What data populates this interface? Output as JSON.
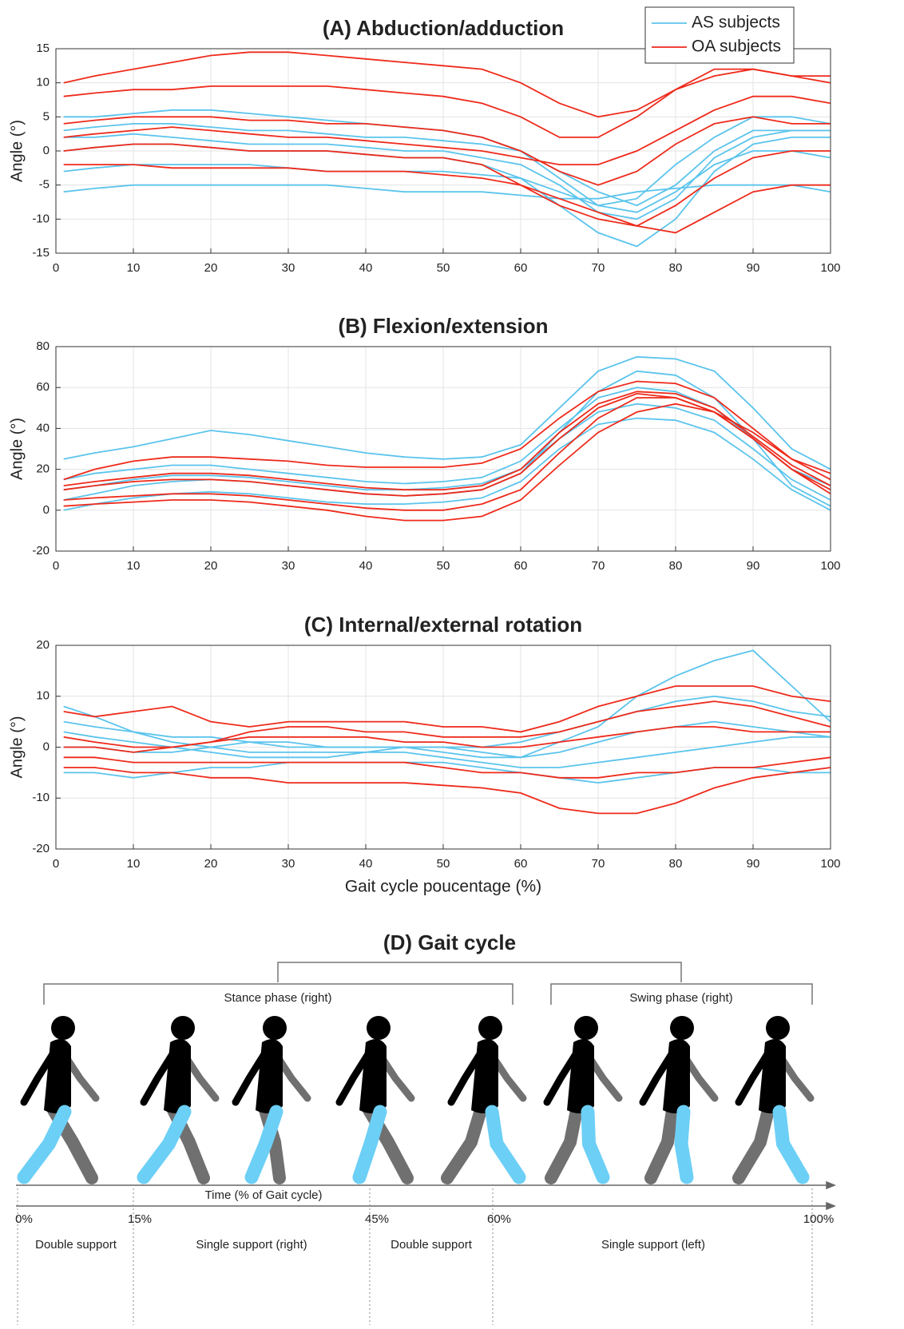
{
  "chart_data": [
    {
      "type": "line",
      "title": "(A) Abduction/adduction",
      "ylabel": "Angle (°)",
      "legend": "upper right",
      "grid": true,
      "x": [
        1,
        5,
        10,
        15,
        20,
        25,
        30,
        35,
        40,
        45,
        50,
        55,
        60,
        65,
        70,
        75,
        80,
        85,
        90,
        95,
        100
      ],
      "xlim": [
        0,
        100
      ],
      "xticks": [
        0,
        10,
        20,
        30,
        40,
        50,
        60,
        70,
        80,
        90,
        100
      ],
      "ylim": [
        -15,
        15
      ],
      "yticks": [
        -15,
        -10,
        -5,
        0,
        5,
        10,
        15
      ],
      "series": [
        {
          "name": "AS subjects",
          "color": "#5bc4ec",
          "values": [
            [
              3,
              3.5,
              4,
              4,
              3.5,
              3,
              3,
              2.5,
              2,
              2,
              1.5,
              1,
              0,
              -3,
              -6,
              -8,
              -5,
              0,
              3,
              3,
              3
            ],
            [
              0,
              0.5,
              1,
              1,
              0.5,
              0,
              0,
              0,
              -0.5,
              -1,
              -1,
              -2,
              -4,
              -8,
              -12,
              -14,
              -10,
              -3,
              1,
              2,
              2
            ],
            [
              -6,
              -5.5,
              -5,
              -5,
              -5,
              -5,
              -5,
              -5,
              -5.5,
              -6,
              -6,
              -6,
              -6.5,
              -7,
              -7,
              -6,
              -5.5,
              -5,
              -5,
              -5,
              -6
            ],
            [
              5,
              5,
              5.5,
              6,
              6,
              5.5,
              5,
              4.5,
              4,
              3.5,
              3,
              2,
              0,
              -4,
              -8,
              -7,
              -2,
              2,
              5,
              5,
              4
            ],
            [
              -3,
              -2.5,
              -2,
              -2,
              -2,
              -2,
              -2.5,
              -3,
              -3,
              -3,
              -3,
              -3.5,
              -4,
              -6,
              -8,
              -9,
              -6,
              -2,
              0,
              0,
              -1
            ],
            [
              2,
              2,
              2.5,
              2,
              1.5,
              1,
              1,
              1,
              0.5,
              0,
              0,
              -1,
              -2,
              -5,
              -9,
              -10,
              -7,
              -1,
              2,
              3,
              3
            ]
          ]
        },
        {
          "name": "OA subjects",
          "color": "#ee2a1b",
          "values": [
            [
              10,
              11,
              12,
              13,
              14,
              14.5,
              14.5,
              14,
              13.5,
              13,
              12.5,
              12,
              10,
              7,
              5,
              6,
              9,
              11,
              12,
              11,
              11
            ],
            [
              8,
              8.5,
              9,
              9,
              9.5,
              9.5,
              9.5,
              9.5,
              9,
              8.5,
              8,
              7,
              5,
              2,
              2,
              5,
              9,
              12,
              12,
              11,
              10
            ],
            [
              4,
              4.5,
              5,
              5,
              5,
              4.5,
              4.5,
              4,
              4,
              3.5,
              3,
              2,
              0,
              -3,
              -5,
              -3,
              1,
              4,
              5,
              4,
              4
            ],
            [
              0,
              0.5,
              1,
              1,
              0.5,
              0,
              0,
              0,
              -0.5,
              -1,
              -1,
              -2,
              -5,
              -8,
              -10,
              -11,
              -8,
              -4,
              -1,
              0,
              0
            ],
            [
              -2,
              -2,
              -2,
              -2.5,
              -2.5,
              -2.5,
              -2.5,
              -3,
              -3,
              -3,
              -3.5,
              -4,
              -5,
              -7,
              -9,
              -11,
              -12,
              -9,
              -6,
              -5,
              -5
            ],
            [
              2,
              2.5,
              3,
              3.5,
              3,
              2.5,
              2,
              2,
              1.5,
              1,
              0.5,
              0,
              -1,
              -2,
              -2,
              0,
              3,
              6,
              8,
              8,
              7
            ]
          ]
        }
      ]
    },
    {
      "type": "line",
      "title": "(B) Flexion/extension",
      "ylabel": "Angle (°)",
      "grid": true,
      "x": [
        1,
        5,
        10,
        15,
        20,
        25,
        30,
        35,
        40,
        45,
        50,
        55,
        60,
        65,
        70,
        75,
        80,
        85,
        90,
        95,
        100
      ],
      "xlim": [
        0,
        100
      ],
      "xticks": [
        0,
        10,
        20,
        30,
        40,
        50,
        60,
        70,
        80,
        90,
        100
      ],
      "ylim": [
        -20,
        80
      ],
      "yticks": [
        -20,
        0,
        20,
        40,
        60,
        80
      ],
      "series": [
        {
          "color": "#5bc4ec",
          "values": [
            [
              25,
              28,
              31,
              35,
              39,
              37,
              34,
              31,
              28,
              26,
              25,
              26,
              32,
              50,
              68,
              75,
              74,
              68,
              50,
              30,
              20
            ],
            [
              5,
              8,
              12,
              14,
              15,
              14,
              12,
              10,
              8,
              7,
              8,
              10,
              18,
              38,
              58,
              68,
              66,
              55,
              35,
              12,
              2
            ],
            [
              0,
              3,
              6,
              8,
              9,
              8,
              6,
              4,
              3,
              3,
              4,
              6,
              14,
              30,
              42,
              45,
              44,
              38,
              25,
              10,
              0
            ],
            [
              10,
              12,
              15,
              17,
              17,
              16,
              14,
              12,
              10,
              10,
              11,
              13,
              20,
              35,
              48,
              52,
              50,
              44,
              30,
              15,
              5
            ],
            [
              15,
              18,
              20,
              22,
              22,
              20,
              18,
              16,
              14,
              13,
              14,
              16,
              24,
              40,
              55,
              60,
              58,
              50,
              35,
              20,
              12
            ]
          ]
        },
        {
          "color": "#ee2a1b",
          "values": [
            [
              15,
              20,
              24,
              26,
              26,
              25,
              24,
              22,
              21,
              21,
              21,
              23,
              30,
              45,
              58,
              63,
              62,
              55,
              40,
              25,
              18
            ],
            [
              10,
              12,
              14,
              15,
              15,
              14,
              12,
              10,
              8,
              7,
              8,
              10,
              18,
              35,
              50,
              57,
              55,
              48,
              35,
              20,
              10
            ],
            [
              5,
              6,
              7,
              8,
              8,
              7,
              5,
              3,
              1,
              0,
              0,
              3,
              10,
              28,
              45,
              55,
              55,
              48,
              35,
              20,
              8
            ],
            [
              12,
              14,
              16,
              18,
              18,
              17,
              15,
              13,
              11,
              10,
              10,
              12,
              20,
              38,
              52,
              58,
              57,
              50,
              36,
              22,
              12
            ],
            [
              2,
              3,
              4,
              5,
              5,
              4,
              2,
              0,
              -3,
              -5,
              -5,
              -3,
              5,
              22,
              38,
              48,
              52,
              48,
              38,
              25,
              15
            ]
          ]
        }
      ]
    },
    {
      "type": "line",
      "title": "(C) Internal/external rotation",
      "ylabel": "Angle (°)",
      "xlabel": "Gait cycle poucentage (%)",
      "grid": true,
      "x": [
        1,
        5,
        10,
        15,
        20,
        25,
        30,
        35,
        40,
        45,
        50,
        55,
        60,
        65,
        70,
        75,
        80,
        85,
        90,
        95,
        100
      ],
      "xlim": [
        0,
        100
      ],
      "xticks": [
        0,
        10,
        20,
        30,
        40,
        50,
        60,
        70,
        80,
        90,
        100
      ],
      "ylim": [
        -20,
        20
      ],
      "yticks": [
        -20,
        -10,
        0,
        10,
        20
      ],
      "series": [
        {
          "color": "#5bc4ec",
          "values": [
            [
              5,
              4,
              3,
              2,
              2,
              1,
              1,
              0,
              0,
              0,
              0,
              -1,
              -2,
              1,
              4,
              10,
              14,
              17,
              19,
              12,
              5
            ],
            [
              -5,
              -5,
              -6,
              -5,
              -4,
              -4,
              -3,
              -3,
              -3,
              -3,
              -3,
              -4,
              -5,
              -6,
              -7,
              -6,
              -5,
              -4,
              -4,
              -5,
              -5
            ],
            [
              8,
              6,
              3,
              1,
              0,
              -1,
              -1,
              -1,
              -1,
              0,
              0,
              0,
              1,
              3,
              5,
              7,
              9,
              10,
              9,
              7,
              6
            ],
            [
              0,
              0,
              -1,
              -1,
              0,
              1,
              0,
              0,
              0,
              0,
              -1,
              -2,
              -2,
              -1,
              1,
              3,
              4,
              5,
              4,
              3,
              2
            ],
            [
              3,
              2,
              1,
              0,
              -1,
              -2,
              -2,
              -2,
              -1,
              -1,
              -2,
              -3,
              -4,
              -4,
              -3,
              -2,
              -1,
              0,
              1,
              2,
              2
            ]
          ]
        },
        {
          "color": "#ee2a1b",
          "values": [
            [
              -4,
              -4,
              -5,
              -5,
              -6,
              -6,
              -7,
              -7,
              -7,
              -7,
              -7.5,
              -8,
              -9,
              -12,
              -13,
              -13,
              -11,
              -8,
              -6,
              -5,
              -4
            ],
            [
              7,
              6,
              7,
              8,
              5,
              4,
              5,
              5,
              5,
              5,
              4,
              4,
              3,
              5,
              8,
              10,
              12,
              12,
              12,
              10,
              9
            ],
            [
              2,
              1,
              0,
              0,
              1,
              2,
              2,
              2,
              2,
              1,
              1,
              0,
              0,
              1,
              2,
              3,
              4,
              4,
              3,
              3,
              3
            ],
            [
              -2,
              -2,
              -3,
              -3,
              -3,
              -3,
              -3,
              -3,
              -3,
              -3,
              -4,
              -5,
              -5,
              -6,
              -6,
              -5,
              -5,
              -4,
              -4,
              -3,
              -2
            ],
            [
              0,
              0,
              -1,
              0,
              1,
              3,
              4,
              4,
              3,
              3,
              2,
              2,
              2,
              3,
              5,
              7,
              8,
              9,
              8,
              6,
              4
            ]
          ]
        }
      ]
    }
  ],
  "diagram": {
    "title": "(D) Gait cycle",
    "phases": [
      "Stance phase (right)",
      "Swing  phase (right)"
    ],
    "axis_label": "Time (% of Gait cycle)",
    "time_marks": [
      "0%",
      "15%",
      "45%",
      "60%",
      "100%"
    ],
    "periods": [
      "Double support",
      "Single support (right)",
      "Double support",
      "Single support (left)"
    ]
  }
}
